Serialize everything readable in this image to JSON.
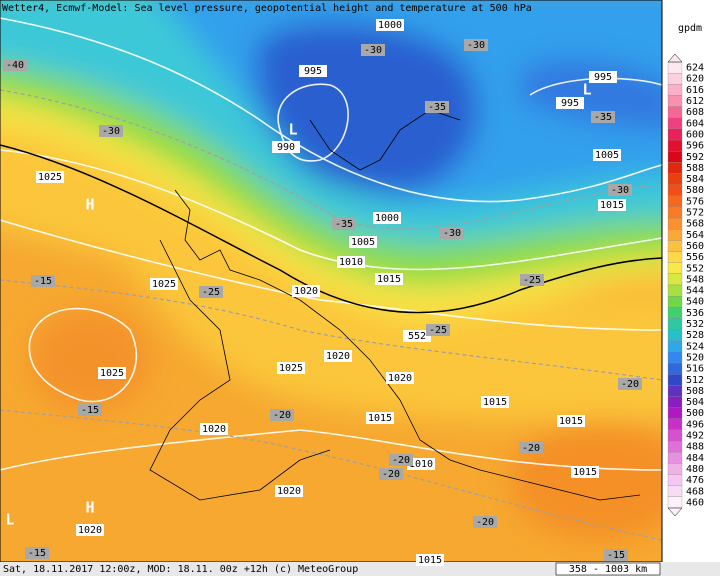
{
  "header": {
    "title": "Wetter4, Ecmwf-Model: Sea level pressure, geopotential height and temperature at 500 hPa"
  },
  "footer": {
    "left": "Sat, 18.11.2017 12:00z, MOD: 18.11. 00z +12h (c) MeteoGroup",
    "scale": "358 - 1003 km"
  },
  "colorbar": {
    "unit": "gpdm",
    "labels": [
      "624",
      "620",
      "616",
      "612",
      "608",
      "604",
      "600",
      "596",
      "592",
      "588",
      "584",
      "580",
      "576",
      "572",
      "568",
      "564",
      "560",
      "556",
      "552",
      "548",
      "544",
      "540",
      "536",
      "532",
      "528",
      "524",
      "520",
      "516",
      "512",
      "508",
      "504",
      "500",
      "496",
      "492",
      "488",
      "484",
      "480",
      "476",
      "468",
      "460"
    ],
    "colors": [
      "#fde8f0",
      "#fcd0e0",
      "#fbb0c8",
      "#f890b0",
      "#f46898",
      "#f04080",
      "#e8205c",
      "#e01030",
      "#d80818",
      "#e02810",
      "#e84010",
      "#f05018",
      "#f46820",
      "#f87c28",
      "#fa9030",
      "#fca838",
      "#fdc040",
      "#fed848",
      "#f8e848",
      "#d8e840",
      "#a8e040",
      "#70d848",
      "#40d070",
      "#30c8a0",
      "#28c0c8",
      "#30a8e8",
      "#3088f0",
      "#3068e0",
      "#3048c8",
      "#6030c0",
      "#8820c0",
      "#b018c0",
      "#c830c8",
      "#d850d0",
      "#e070d8",
      "#e890e0",
      "#f0b0e8",
      "#f4c8f0",
      "#f8dcf4",
      "#fcf0fa"
    ]
  },
  "map": {
    "isobar_labels": [
      "1000",
      "995",
      "990",
      "995",
      "995",
      "1005",
      "1015",
      "1000",
      "1005",
      "1010",
      "1015",
      "1020",
      "1025",
      "1025",
      "1025",
      "1020",
      "1025",
      "1020",
      "1015",
      "1015",
      "1015",
      "1010",
      "1020",
      "1020",
      "1020",
      "1015",
      "1015",
      "552"
    ],
    "temperature_labels": [
      "-30",
      "-30",
      "-40",
      "-30",
      "-35",
      "-35",
      "-30",
      "-35",
      "-30",
      "-25",
      "-25",
      "-15",
      "-25",
      "-15",
      "-20",
      "-20",
      "-20",
      "-20",
      "-20",
      "-20",
      "-15",
      "-15"
    ],
    "pressure_centers": [
      "H",
      "L",
      "L",
      "H",
      "L"
    ]
  }
}
